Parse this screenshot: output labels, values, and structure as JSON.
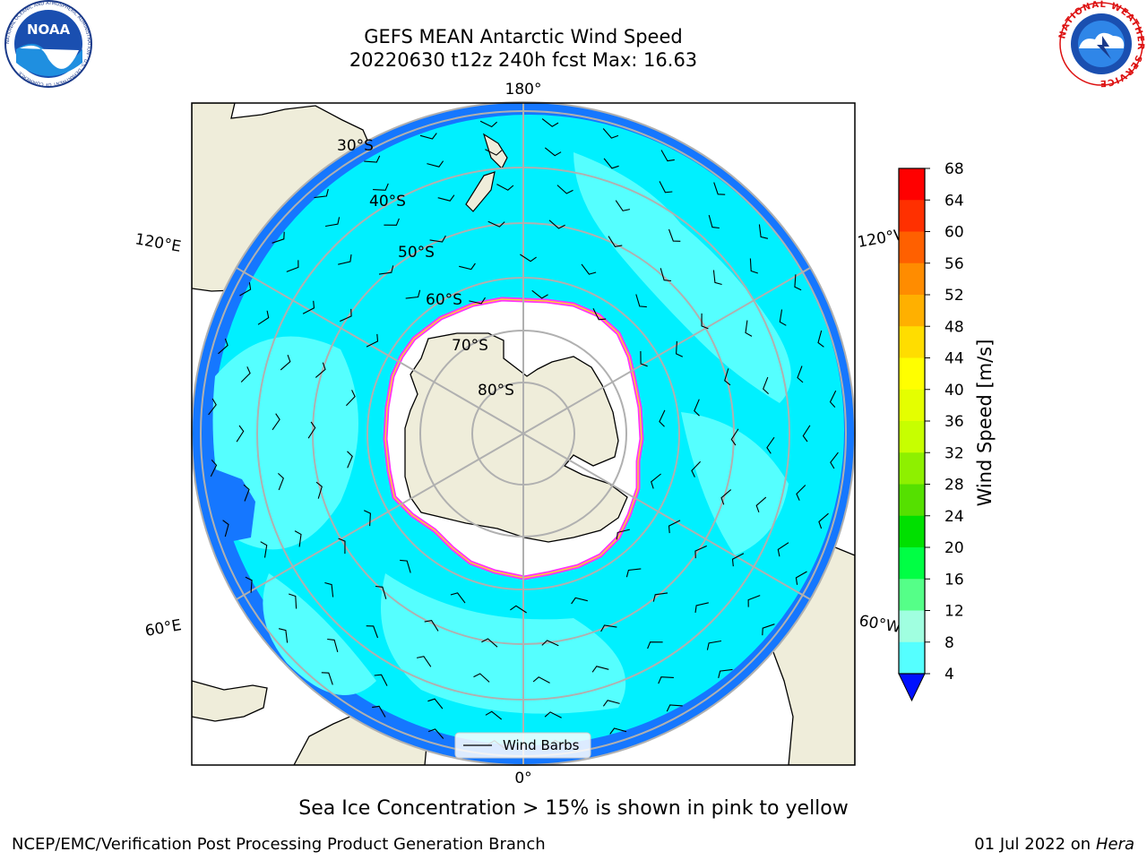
{
  "title": {
    "line1": "GEFS MEAN Antarctic Wind Speed",
    "line2": "20220630 t12z 240h fcst   Max: 16.63"
  },
  "logos": {
    "left_text": "NOAA",
    "left_ring": "NATIONAL OCEANIC AND ATMOSPHERIC ADMINISTRATION · U.S. DEPARTMENT OF COMMERCE",
    "right_ring": "NATIONAL WEATHER SERVICE"
  },
  "map": {
    "longitude_labels": {
      "top": "180°",
      "bottom": "0°",
      "upper_left": "120°E",
      "upper_right": "120°W",
      "lower_left": "60°E",
      "lower_right": "60°W"
    },
    "latitude_labels": [
      "30°S",
      "40°S",
      "50°S",
      "60°S",
      "70°S",
      "80°S"
    ],
    "legend_label": "Wind Barbs"
  },
  "colorbar": {
    "label": "Wind Speed [m/s]",
    "ticks": [
      "68",
      "64",
      "60",
      "56",
      "52",
      "48",
      "44",
      "40",
      "36",
      "32",
      "28",
      "24",
      "20",
      "16",
      "12",
      "8",
      "4"
    ],
    "colors": [
      "#ff0000",
      "#ff3000",
      "#ff6000",
      "#ff8c00",
      "#ffb000",
      "#ffdd00",
      "#ffff00",
      "#e4ff00",
      "#c7ff00",
      "#8ef000",
      "#55e000",
      "#00e000",
      "#00ff44",
      "#55ff88",
      "#a0ffe0",
      "#55ffff",
      "#00ffff",
      "#0080ff",
      "#0010ff"
    ]
  },
  "colors": {
    "land": "#efedda",
    "ocean_fast": "#1577ff",
    "ocean_mid": "#00f0ff",
    "ocean_light": "#55ffff",
    "ice_edge_pink": "#ff33ff",
    "ice_edge_yellow": "#ffcc33",
    "grid": "#b0b0b0"
  },
  "caption": "Sea Ice Concentration > 15% is shown in pink to yellow",
  "footer": {
    "left": "NCEP/EMC/Verification Post Processing Product Generation Branch",
    "right_prefix": "01 Jul 2022 on ",
    "right_host": "Hera"
  }
}
